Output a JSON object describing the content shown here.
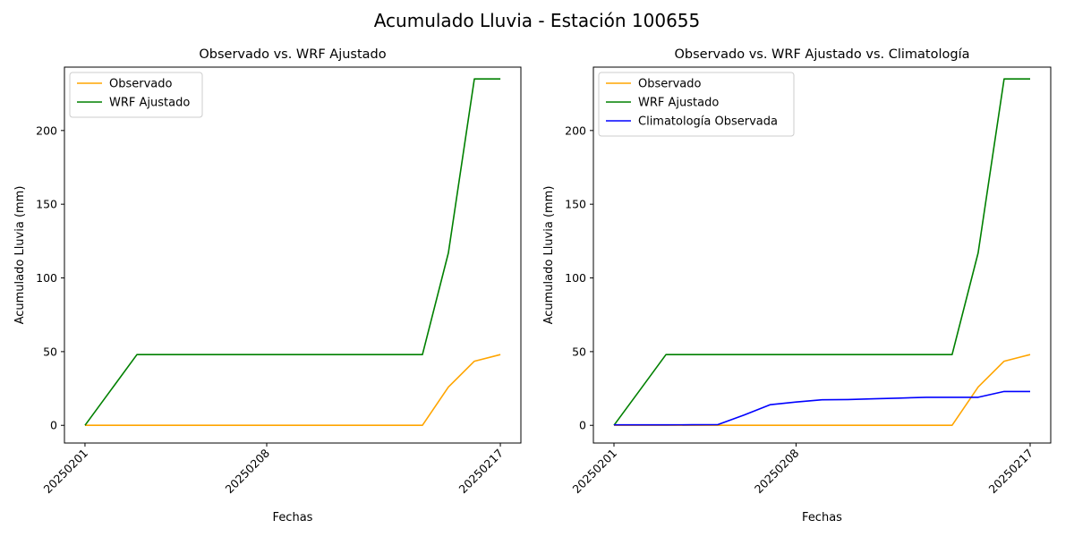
{
  "suptitle": "Acumulado Lluvia - Estación 100655",
  "colors": {
    "observado": "#ffa500",
    "wrf": "#008000",
    "clim": "#0000ff"
  },
  "chart_data": [
    {
      "type": "line",
      "title": "Observado vs. WRF Ajustado",
      "xlabel": "Fechas",
      "ylabel": "Acumulado Lluvia (mm)",
      "x": [
        "20250201",
        "20250202",
        "20250203",
        "20250204",
        "20250205",
        "20250206",
        "20250207",
        "20250208",
        "20250209",
        "20250210",
        "20250211",
        "20250212",
        "20250213",
        "20250214",
        "20250215",
        "20250216",
        "20250217"
      ],
      "xticks": [
        "20250201",
        "20250208",
        "20250217"
      ],
      "yticks": [
        0,
        50,
        100,
        150,
        200
      ],
      "ylim": [
        -12,
        243
      ],
      "legend": "top-left",
      "grid": false,
      "series": [
        {
          "name": "Observado",
          "color": "#ffa500",
          "values": [
            0,
            0,
            0,
            0,
            0,
            0,
            0,
            0,
            0,
            0,
            0,
            0,
            0,
            0,
            26,
            43.5,
            48
          ]
        },
        {
          "name": "WRF Ajustado",
          "color": "#008000",
          "values": [
            0,
            24,
            48,
            48,
            48,
            48,
            48,
            48,
            48,
            48,
            48,
            48,
            48,
            48,
            117,
            235,
            235
          ]
        }
      ]
    },
    {
      "type": "line",
      "title": "Observado vs. WRF Ajustado vs. Climatología",
      "xlabel": "Fechas",
      "ylabel": "Acumulado Lluvia (mm)",
      "x": [
        "20250201",
        "20250202",
        "20250203",
        "20250204",
        "20250205",
        "20250206",
        "20250207",
        "20250208",
        "20250209",
        "20250210",
        "20250211",
        "20250212",
        "20250213",
        "20250214",
        "20250215",
        "20250216",
        "20250217"
      ],
      "xticks": [
        "20250201",
        "20250208",
        "20250217"
      ],
      "yticks": [
        0,
        50,
        100,
        150,
        200
      ],
      "ylim": [
        -12,
        243
      ],
      "legend": "top-left",
      "grid": false,
      "series": [
        {
          "name": "Observado",
          "color": "#ffa500",
          "values": [
            0,
            0,
            0,
            0,
            0,
            0,
            0,
            0,
            0,
            0,
            0,
            0,
            0,
            0,
            26,
            43.5,
            48
          ]
        },
        {
          "name": "WRF Ajustado",
          "color": "#008000",
          "values": [
            0,
            24,
            48,
            48,
            48,
            48,
            48,
            48,
            48,
            48,
            48,
            48,
            48,
            48,
            117,
            235,
            235
          ]
        },
        {
          "name": "Climatología Observada",
          "color": "#0000ff",
          "values": [
            0.3,
            0.3,
            0.3,
            0.4,
            0.5,
            7,
            14,
            15.8,
            17.3,
            17.5,
            18,
            18.5,
            19,
            19,
            19,
            23,
            23
          ]
        }
      ]
    }
  ]
}
